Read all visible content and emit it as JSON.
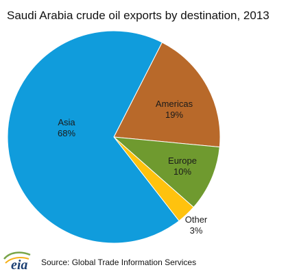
{
  "chart_data": {
    "type": "pie",
    "title": "Saudi Arabia crude oil exports by destination, 2013",
    "slices": [
      {
        "label": "Americas",
        "value": 19,
        "value_label": "19%",
        "color": "#b8692a"
      },
      {
        "label": "Europe",
        "value": 10,
        "value_label": "10%",
        "color": "#6f9a2f"
      },
      {
        "label": "Other",
        "value": 3,
        "value_label": "3%",
        "color": "#ffc20e"
      },
      {
        "label": "Asia",
        "value": 68,
        "value_label": "68%",
        "color": "#109cdc"
      }
    ],
    "legend": "none"
  },
  "footer": {
    "source": "Source: Global Trade Information Services",
    "logo_text": "eia",
    "logo_icon": "eia-logo-icon"
  },
  "colors": {
    "slice_border": "#ffffff",
    "background": "#ffffff"
  }
}
